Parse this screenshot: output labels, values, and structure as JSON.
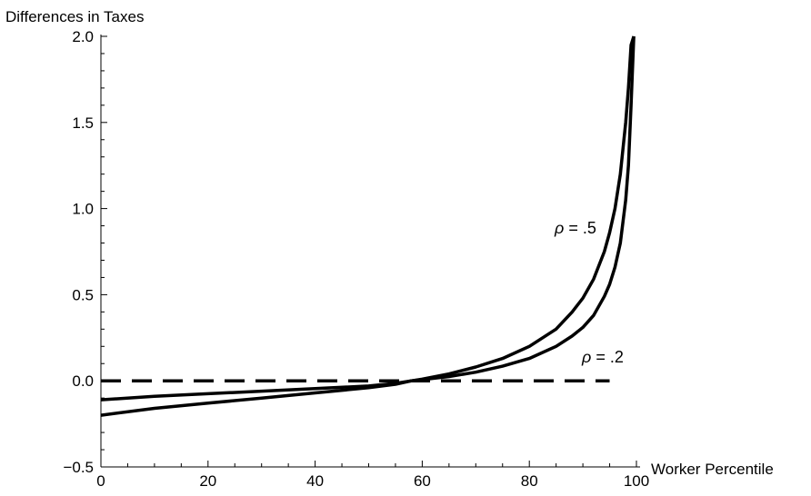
{
  "chart_data": {
    "type": "line",
    "title": "",
    "xlabel": "Worker Percentile",
    "ylabel": "Differences in Taxes",
    "xlim": [
      0,
      100
    ],
    "ylim": [
      -0.5,
      2.0
    ],
    "x_ticks": [
      0,
      20,
      40,
      60,
      80,
      100
    ],
    "x_tick_labels": [
      "0",
      "20",
      "40",
      "60",
      "80",
      "100"
    ],
    "y_ticks": [
      -0.5,
      0.0,
      0.5,
      1.0,
      1.5,
      2.0
    ],
    "y_tick_labels": [
      "−0.5",
      "0.0",
      "0.5",
      "1.0",
      "1.5",
      "2.0"
    ],
    "grid": false,
    "legend": "none",
    "series": [
      {
        "name": "ρ = .5",
        "symbol": "ρ",
        "value_text": " = .5",
        "style": "solid",
        "color": "#000000",
        "x": [
          0,
          10,
          20,
          30,
          40,
          50,
          55,
          58,
          60,
          65,
          70,
          75,
          80,
          85,
          88,
          90,
          92,
          94,
          95,
          96,
          97,
          98,
          98.5,
          99,
          99.5
        ],
        "y": [
          -0.2,
          -0.16,
          -0.13,
          -0.1,
          -0.07,
          -0.04,
          -0.02,
          0.0,
          0.01,
          0.04,
          0.08,
          0.13,
          0.2,
          0.3,
          0.4,
          0.48,
          0.59,
          0.75,
          0.86,
          1.0,
          1.2,
          1.5,
          1.7,
          1.95,
          2.0
        ]
      },
      {
        "name": "ρ = .2",
        "symbol": "ρ",
        "value_text": " = .2",
        "style": "solid",
        "color": "#000000",
        "x": [
          0,
          10,
          20,
          30,
          40,
          50,
          55,
          58,
          60,
          65,
          70,
          75,
          80,
          85,
          88,
          90,
          92,
          94,
          95,
          96,
          97,
          98,
          98.5,
          99,
          99.5
        ],
        "y": [
          -0.11,
          -0.09,
          -0.075,
          -0.06,
          -0.045,
          -0.03,
          -0.015,
          0.0,
          0.007,
          0.025,
          0.05,
          0.085,
          0.13,
          0.2,
          0.26,
          0.31,
          0.38,
          0.49,
          0.56,
          0.66,
          0.8,
          1.05,
          1.25,
          1.6,
          2.0
        ]
      },
      {
        "name": "",
        "style": "dashed",
        "color": "#000000",
        "x": [
          0,
          95
        ],
        "y": [
          0,
          0
        ]
      }
    ]
  }
}
